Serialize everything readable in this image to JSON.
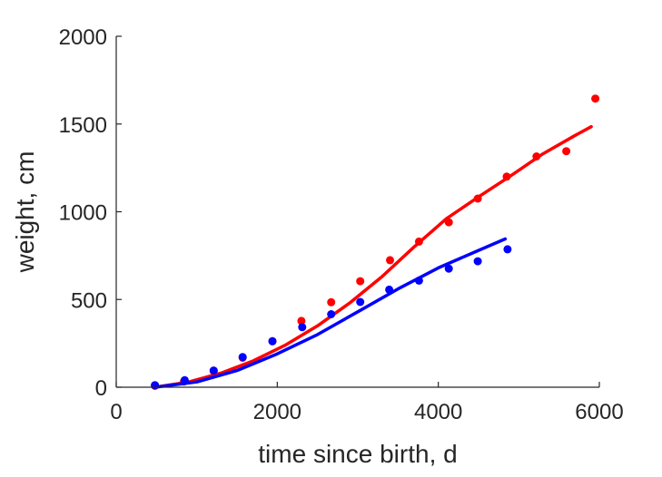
{
  "chart_data": {
    "type": "scatter",
    "title": "",
    "xlabel": "time since birth, d",
    "ylabel": "weight, cm",
    "xlim": [
      0,
      6000
    ],
    "ylim": [
      0,
      2000
    ],
    "xticks": [
      0,
      2000,
      4000,
      6000
    ],
    "yticks": [
      0,
      500,
      1000,
      1500,
      2000
    ],
    "grid": false,
    "legend": "none",
    "colors": {
      "series_1": "#ff0000",
      "series_2": "#0000ff",
      "axis": "#262626"
    },
    "series": [
      {
        "color": "#ff0000",
        "points": {
          "x": [
            480,
            840,
            1210,
            1570,
            1940,
            2300,
            2670,
            3030,
            3400,
            3760,
            4130,
            4490,
            4850,
            5220,
            5590,
            5950
          ],
          "y": [
            8,
            32,
            92,
            168,
            262,
            378,
            484,
            604,
            724,
            830,
            940,
            1075,
            1200,
            1315,
            1345,
            1645
          ]
        },
        "fit": {
          "x": [
            480,
            900,
            1300,
            1700,
            2100,
            2500,
            2900,
            3300,
            3700,
            4100,
            4500,
            4900,
            5300,
            5700,
            5900
          ],
          "y": [
            0,
            30,
            80,
            150,
            240,
            350,
            480,
            630,
            800,
            960,
            1085,
            1205,
            1330,
            1435,
            1485
          ]
        }
      },
      {
        "color": "#0000ff",
        "points": {
          "x": [
            480,
            850,
            1210,
            1570,
            1940,
            2310,
            2670,
            3030,
            3390,
            3760,
            4130,
            4490,
            4860
          ],
          "y": [
            12,
            40,
            95,
            172,
            262,
            342,
            416,
            486,
            556,
            608,
            676,
            718,
            786
          ]
        },
        "fit": {
          "x": [
            480,
            1000,
            1500,
            2000,
            2500,
            3000,
            3500,
            4000,
            4500,
            4830
          ],
          "y": [
            0,
            30,
            95,
            190,
            300,
            430,
            560,
            680,
            780,
            845
          ]
        }
      }
    ]
  }
}
